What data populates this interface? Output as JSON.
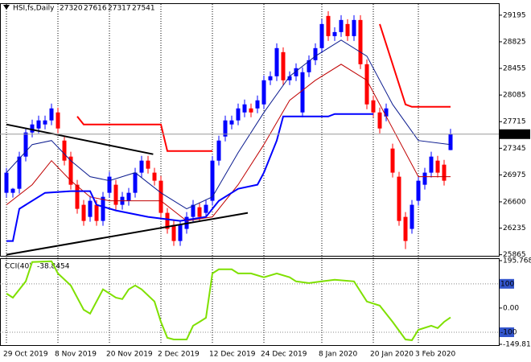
{
  "chart_data": [
    {
      "type": "candlestick",
      "title": "HSI,fs,Daily",
      "up_color": "#0000ff",
      "down_color": "#ff0000",
      "categories": [
        "29 Oct 2019",
        null,
        null,
        null,
        null,
        null,
        null,
        null,
        "8 Nov 2019",
        null,
        null,
        null,
        null,
        null,
        null,
        null,
        "20 Nov 2019",
        null,
        null,
        null,
        null,
        null,
        null,
        null,
        "2 Dec 2019",
        null,
        null,
        null,
        null,
        null,
        null,
        null,
        "12 Dec 2019",
        null,
        null,
        null,
        null,
        null,
        null,
        null,
        "24 Dec 2019",
        null,
        null,
        null,
        null,
        null,
        null,
        null,
        null,
        "8 Jan 2020",
        null,
        null,
        null,
        null,
        null,
        null,
        null,
        "20 Jan 2020",
        null,
        null,
        null,
        null,
        null,
        null,
        "3 Feb 2020",
        null,
        null,
        null,
        null,
        null
      ],
      "candles": [
        [
          26726,
          27073,
          26659,
          27006
        ],
        [
          26726,
          26793,
          26659,
          26782
        ],
        [
          26782,
          27296,
          26715,
          27229
        ],
        [
          27229,
          27631,
          27162,
          27564
        ],
        [
          27564,
          27743,
          27497,
          27676
        ],
        [
          27620,
          27799,
          27553,
          27732
        ],
        [
          27676,
          27799,
          27609,
          27732
        ],
        [
          27732,
          27966,
          27665,
          27899
        ],
        [
          27843,
          27910,
          27553,
          27620
        ],
        [
          27452,
          27519,
          27106,
          27173
        ],
        [
          27229,
          27296,
          26771,
          26838
        ],
        [
          26838,
          26905,
          26436,
          26503
        ],
        [
          26559,
          26626,
          26268,
          26335
        ],
        [
          26391,
          26682,
          26324,
          26615
        ],
        [
          26559,
          26626,
          26268,
          26335
        ],
        [
          26335,
          26737,
          26268,
          26670
        ],
        [
          26726,
          27017,
          26659,
          26950
        ],
        [
          26838,
          26905,
          26492,
          26559
        ],
        [
          26559,
          26737,
          26492,
          26670
        ],
        [
          26615,
          26793,
          26548,
          26726
        ],
        [
          26726,
          27073,
          26659,
          27006
        ],
        [
          27006,
          27240,
          26939,
          27173
        ],
        [
          27173,
          27240,
          26994,
          27061
        ],
        [
          27006,
          27073,
          26827,
          26894
        ],
        [
          26894,
          26961,
          26380,
          26447
        ],
        [
          26447,
          26514,
          26157,
          26224
        ],
        [
          26279,
          26346,
          25989,
          26056
        ],
        [
          26056,
          26346,
          25989,
          26279
        ],
        [
          26224,
          26458,
          26157,
          26391
        ],
        [
          26391,
          26626,
          26324,
          26559
        ],
        [
          26525,
          26592,
          26324,
          26391
        ],
        [
          26447,
          26626,
          26380,
          26559
        ],
        [
          26615,
          27240,
          26548,
          27173
        ],
        [
          27173,
          27519,
          27106,
          27452
        ],
        [
          27508,
          27799,
          27441,
          27732
        ],
        [
          27676,
          27799,
          27609,
          27732
        ],
        [
          27732,
          27966,
          27665,
          27899
        ],
        [
          27843,
          28022,
          27776,
          27955
        ],
        [
          27899,
          27966,
          27776,
          27843
        ],
        [
          27899,
          28078,
          27832,
          28011
        ],
        [
          27955,
          28357,
          27888,
          28290
        ],
        [
          28290,
          28413,
          28223,
          28346
        ],
        [
          28346,
          28804,
          28279,
          28737
        ],
        [
          28681,
          28748,
          28223,
          28290
        ],
        [
          28290,
          28413,
          28223,
          28346
        ],
        [
          28346,
          28525,
          28279,
          28458
        ],
        [
          27843,
          28469,
          27776,
          28402
        ],
        [
          28402,
          28636,
          28335,
          28569
        ],
        [
          28569,
          28804,
          28502,
          28737
        ],
        [
          28737,
          29139,
          28670,
          29072
        ],
        [
          29184,
          29251,
          28837,
          28904
        ],
        [
          28904,
          29027,
          28837,
          28960
        ],
        [
          28960,
          29195,
          28893,
          29128
        ],
        [
          29072,
          29139,
          28837,
          28904
        ],
        [
          28904,
          29195,
          28837,
          29128
        ],
        [
          29128,
          29195,
          28446,
          28513
        ],
        [
          28513,
          28580,
          27888,
          27955
        ],
        [
          28011,
          28078,
          27776,
          27843
        ],
        [
          27843,
          27910,
          27553,
          27620
        ],
        [
          27787,
          27966,
          27720,
          27899
        ],
        [
          27341,
          27408,
          26939,
          27006
        ],
        [
          26950,
          27017,
          26268,
          26335
        ],
        [
          26391,
          26458,
          25944,
          26056
        ],
        [
          26224,
          26626,
          26157,
          26559
        ],
        [
          26615,
          26961,
          26548,
          26894
        ],
        [
          26838,
          27073,
          26771,
          27006
        ],
        [
          27006,
          27296,
          26939,
          27229
        ],
        [
          27173,
          27240,
          26939,
          27006
        ],
        [
          27117,
          27184,
          26827,
          26894
        ],
        [
          27320,
          27616,
          27317,
          27541
        ]
      ],
      "series": [
        {
          "color": "#0b1b8f",
          "width": 1,
          "x": [
            0,
            4,
            7,
            10,
            13,
            16,
            20,
            24,
            28,
            32,
            36,
            40,
            44,
            48,
            52,
            56,
            60,
            64,
            69
          ],
          "values": [
            27006,
            27396,
            27452,
            27173,
            26950,
            26894,
            27006,
            26726,
            26503,
            26670,
            27285,
            27843,
            28346,
            28625,
            28849,
            28625,
            27955,
            27452,
            27396
          ]
        },
        {
          "color": "#c00000",
          "width": 1,
          "x": [
            0,
            4,
            7,
            10,
            13,
            16,
            20,
            24,
            28,
            32,
            36,
            40,
            44,
            48,
            52,
            56,
            60,
            64,
            69
          ],
          "values": [
            26559,
            26838,
            27173,
            26894,
            26670,
            26615,
            26615,
            26615,
            26335,
            26391,
            26838,
            27396,
            28011,
            28290,
            28513,
            28290,
            27620,
            26950,
            26950
          ]
        },
        {
          "color": "#0000ff",
          "width": 2,
          "x": [
            0,
            1,
            2,
            3,
            6,
            10,
            13,
            14,
            17,
            22,
            27,
            31,
            33,
            36,
            39,
            40,
            42,
            43,
            50,
            51,
            57
          ],
          "values": [
            26056,
            26056,
            26503,
            26559,
            26726,
            26749,
            26749,
            26559,
            26481,
            26391,
            26335,
            26391,
            26615,
            26782,
            26838,
            27006,
            27452,
            27787,
            27787,
            27821,
            27821
          ]
        },
        {
          "color": "#ff0000",
          "width": 2,
          "x": [
            11,
            12,
            24,
            25,
            32,
            33,
            58,
            62,
            63,
            69
          ],
          "values": [
            27787,
            27676,
            27676,
            27307,
            27307,
            null,
            29072,
            27955,
            27921,
            27921
          ]
        },
        {
          "color": "#000000",
          "width": 2,
          "x": [
            0,
            22.8
          ],
          "values": [
            27676,
            27262
          ]
        },
        {
          "color": "#000000",
          "width": 2,
          "x": [
            0,
            37.5
          ],
          "values": [
            25866,
            26447
          ]
        }
      ],
      "ylim": [
        25850,
        29350
      ],
      "yticks": [
        29195,
        28825,
        28455,
        28085,
        27715,
        27345,
        26975,
        26600,
        26235,
        25865
      ]
    },
    {
      "type": "line",
      "title": "CCI(40)",
      "color": "#7fe000",
      "x": [
        0,
        1,
        3,
        4,
        7,
        8,
        10,
        12,
        13,
        15,
        17,
        18,
        19,
        20,
        21,
        23,
        24,
        25,
        26,
        28,
        29,
        30,
        31,
        32,
        33,
        35,
        36,
        38,
        40,
        42,
        44,
        45,
        47,
        49,
        51,
        54,
        56,
        58,
        60,
        62,
        63,
        64,
        66,
        67,
        68,
        69
      ],
      "values": [
        60,
        43,
        110,
        190,
        193,
        143,
        93,
        -7,
        -23,
        77,
        43,
        37,
        77,
        93,
        77,
        27,
        -57,
        -123,
        -130,
        -130,
        -73,
        -57,
        -40,
        143,
        160,
        160,
        143,
        143,
        127,
        143,
        127,
        110,
        103,
        110,
        117,
        110,
        27,
        10,
        -57,
        -130,
        -133,
        -90,
        -73,
        -83,
        -57,
        -38.8454
      ],
      "ylim": [
        -149.813,
        195.7682
      ],
      "yticks": [
        195.7682,
        100,
        {
          "value": 0,
          "label": "0.00"
        },
        -100,
        -149.813
      ]
    }
  ]
}
